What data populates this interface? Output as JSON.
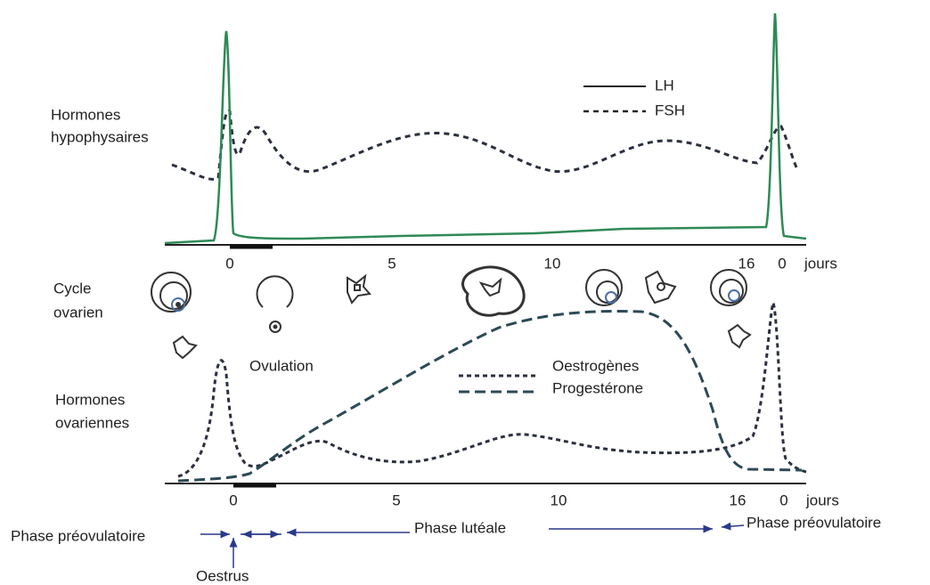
{
  "top_panel": {
    "title_lines": [
      "Hormones",
      "hypophysaires"
    ],
    "legend": [
      "LH",
      "FSH"
    ],
    "axis_ticks": [
      "0",
      "5",
      "10",
      "16",
      "0",
      "jours"
    ]
  },
  "middle_panel": {
    "title_lines": [
      "Cycle",
      "ovarien"
    ],
    "annotation": "Ovulation"
  },
  "bottom_panel": {
    "title_lines": [
      "Hormones",
      "ovariennes"
    ],
    "legend": [
      "Oestrogènes",
      "Progestérone"
    ],
    "axis_ticks": [
      "0",
      "5",
      "10",
      "16",
      "0",
      "jours"
    ]
  },
  "phases": {
    "left": "Phase préovulatoire",
    "middle": "Phase lutéale",
    "right": "Phase préovulatoire",
    "oestrus": "Oestrus"
  }
}
